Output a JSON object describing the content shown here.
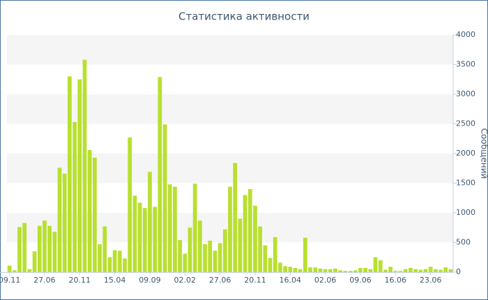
{
  "chart_data": {
    "type": "bar",
    "title": "Статистика активности",
    "y_label": "Сообщений",
    "categories": [
      "09.11",
      null,
      null,
      null,
      null,
      null,
      null,
      "27.06",
      null,
      null,
      null,
      null,
      null,
      null,
      "20.11",
      null,
      null,
      null,
      null,
      null,
      null,
      "15.04",
      null,
      null,
      null,
      null,
      null,
      null,
      "09.09",
      null,
      null,
      null,
      null,
      null,
      null,
      "02.02",
      null,
      null,
      null,
      null,
      null,
      null,
      "27.06",
      null,
      null,
      null,
      null,
      null,
      null,
      "20.11",
      null,
      null,
      null,
      null,
      null,
      null,
      "16.04",
      null,
      null,
      null,
      null,
      null,
      null,
      "02.06",
      null,
      null,
      null,
      null,
      null,
      null,
      "09.06",
      null,
      null,
      null,
      null,
      null,
      null,
      "16.06",
      null,
      null,
      null,
      null,
      null,
      null,
      "23.06",
      null,
      null,
      null,
      null
    ],
    "values": [
      110,
      30,
      760,
      830,
      50,
      350,
      780,
      870,
      780,
      680,
      1760,
      1660,
      3300,
      2530,
      3250,
      3580,
      2060,
      1930,
      470,
      770,
      250,
      370,
      360,
      230,
      2270,
      1290,
      1170,
      1080,
      1690,
      1100,
      3290,
      2490,
      1480,
      1440,
      540,
      310,
      750,
      1490,
      870,
      470,
      530,
      360,
      490,
      720,
      1440,
      1840,
      900,
      1300,
      1400,
      1120,
      770,
      450,
      240,
      590,
      160,
      100,
      90,
      70,
      50,
      580,
      80,
      80,
      60,
      50,
      50,
      60,
      30,
      20,
      20,
      30,
      70,
      70,
      50,
      250,
      200,
      40,
      90,
      20,
      20,
      50,
      70,
      50,
      40,
      50,
      90,
      50,
      40,
      80,
      50
    ],
    "color": "#b8e02f",
    "ylim": [
      0,
      4000
    ],
    "yticks": [
      0,
      500,
      1000,
      1500,
      2000,
      2500,
      3000,
      3500,
      4000
    ],
    "grid": "bands"
  }
}
